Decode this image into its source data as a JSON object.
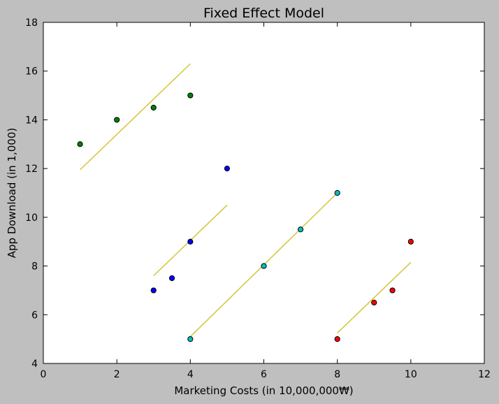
{
  "chart_data": {
    "type": "scatter",
    "title": "Fixed Effect Model",
    "xlabel": "Marketing Costs (in 10,000,000₩)",
    "ylabel": "App Download (in 1,000)",
    "xlim": [
      0,
      12
    ],
    "ylim": [
      4,
      18
    ],
    "xticks": [
      0,
      2,
      4,
      6,
      8,
      10,
      12
    ],
    "yticks": [
      4,
      6,
      8,
      10,
      12,
      14,
      16,
      18
    ],
    "grid": false,
    "legend": "none",
    "fit_color": "#d4c53a",
    "series": [
      {
        "color": "#008000",
        "points": [
          [
            1,
            13
          ],
          [
            2,
            14
          ],
          [
            3,
            14.5
          ],
          [
            4,
            15
          ]
        ],
        "fit_line": [
          [
            1,
            11.95
          ],
          [
            4,
            16.3
          ]
        ]
      },
      {
        "color": "#0000ff",
        "points": [
          [
            3,
            7
          ],
          [
            3.5,
            7.5
          ],
          [
            4,
            9
          ],
          [
            5,
            12
          ]
        ],
        "fit_line": [
          [
            3,
            7.6
          ],
          [
            5,
            10.5
          ]
        ]
      },
      {
        "color": "#00bfbf",
        "points": [
          [
            4,
            5
          ],
          [
            6,
            8
          ],
          [
            7,
            9.5
          ],
          [
            8,
            11
          ]
        ],
        "fit_line": [
          [
            4,
            5.1
          ],
          [
            8,
            11
          ]
        ]
      },
      {
        "color": "#ff0000",
        "points": [
          [
            8,
            5
          ],
          [
            9,
            6.5
          ],
          [
            9.5,
            7
          ],
          [
            10,
            9
          ]
        ],
        "fit_line": [
          [
            8,
            5.25
          ],
          [
            10,
            8.15
          ]
        ]
      }
    ]
  }
}
